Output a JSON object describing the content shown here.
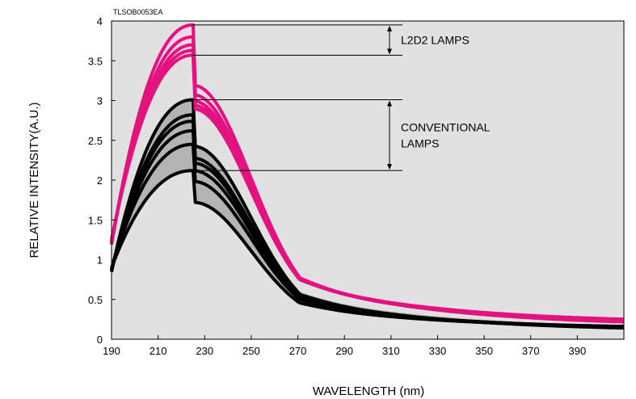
{
  "chart_data": {
    "type": "line",
    "code_label": "TLSOB0053EA",
    "xlabel": "WAVELENGTH (nm)",
    "ylabel": "RELATIVE INTENSITY(A.U.)",
    "xlim": [
      190,
      410
    ],
    "ylim": [
      0,
      4
    ],
    "x_ticks": [
      190,
      210,
      230,
      250,
      270,
      290,
      310,
      330,
      350,
      370,
      390
    ],
    "y_ticks": [
      0,
      0.5,
      1,
      1.5,
      2,
      2.5,
      3,
      3.5,
      4
    ],
    "y_tick_labels": [
      "0",
      "0.5",
      "1",
      "1.5",
      "2",
      "2.5",
      "3",
      "3.5",
      "4"
    ],
    "grid": false,
    "plot_background": "#e1e1e1",
    "groups": [
      {
        "id": "l2d2",
        "color": "#e4127e",
        "band_fill": "#f6d6e4",
        "annotation": [
          "L2D2 LAMPS"
        ],
        "range": [
          3.57,
          3.95
        ],
        "peaks": [
          3.95,
          3.8,
          3.7,
          3.63,
          3.57
        ],
        "base": 1.25,
        "tail": 0.2
      },
      {
        "id": "conventional",
        "color": "#000000",
        "band_fill": "#b4b4b4",
        "annotation": [
          "CONVENTIONAL",
          "LAMPS"
        ],
        "range": [
          2.12,
          3.01
        ],
        "peaks": [
          3.01,
          2.82,
          2.74,
          2.62,
          2.45,
          2.12
        ],
        "base": 0.9,
        "tail": 0.13
      }
    ]
  }
}
